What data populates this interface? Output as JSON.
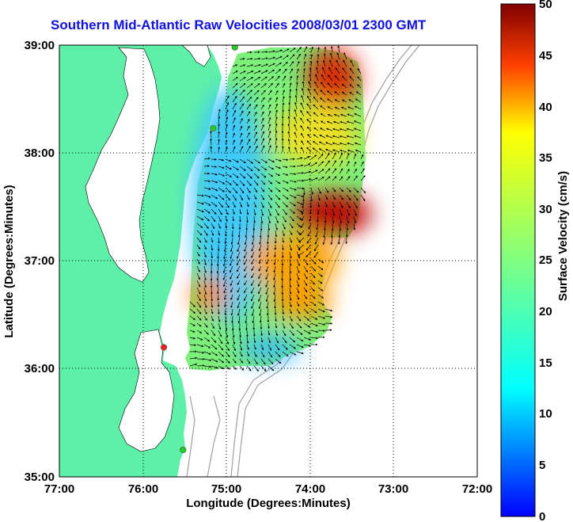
{
  "title": "Southern Mid-Atlantic Raw Velocities 2008/03/01 2300 GMT",
  "x_axis": {
    "label": "Longitude (Degrees:Minutes)",
    "ticks": [
      "77:00",
      "76:00",
      "75:00",
      "74:00",
      "73:00",
      "72:00"
    ]
  },
  "y_axis": {
    "label": "Latitude (Degrees:Minutes)",
    "ticks": [
      "39:00",
      "38:00",
      "37:00",
      "36:00",
      "35:00"
    ]
  },
  "colorbar": {
    "label": "Surface Velocity (cm/s)",
    "ticks": [
      "50",
      "45",
      "40",
      "35",
      "30",
      "25",
      "20",
      "15",
      "10",
      "5",
      "0"
    ],
    "range": [
      0,
      50
    ],
    "colormap": "jet"
  },
  "map_extent": {
    "lon": [
      -77,
      -72
    ],
    "lat": [
      35,
      39
    ]
  },
  "grid": "dotted",
  "colors": {
    "title": "#1010e0",
    "land": "#5ef0a8",
    "water": "#ffffff",
    "bathymetry": "#a0a0a0",
    "station_active": "#22cc22",
    "station_inactive": "#ee2222"
  },
  "stations": [
    {
      "lon": -74.9,
      "lat": 38.98,
      "status": "active"
    },
    {
      "lon": -75.16,
      "lat": 38.23,
      "status": "active"
    },
    {
      "lon": -75.75,
      "lat": 36.2,
      "status": "inactive"
    },
    {
      "lon": -75.52,
      "lat": 35.25,
      "status": "active"
    }
  ],
  "hotspots": [
    {
      "lon": -73.8,
      "lat": 38.85,
      "speed": 48
    },
    {
      "lon": -73.8,
      "lat": 37.45,
      "speed": 48
    },
    {
      "lon": -74.4,
      "lat": 36.85,
      "speed": 35
    },
    {
      "lon": -74.95,
      "lat": 36.8,
      "speed": 30
    }
  ]
}
